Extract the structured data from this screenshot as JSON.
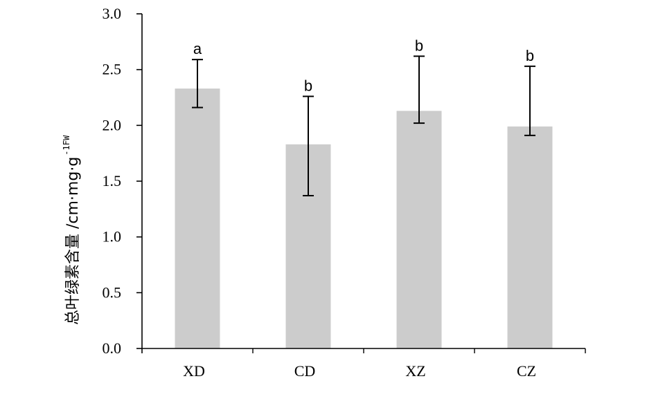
{
  "chart_data": {
    "type": "bar",
    "categories": [
      "XD",
      "CD",
      "XZ",
      "CZ"
    ],
    "values": [
      2.33,
      1.83,
      2.13,
      1.99
    ],
    "error_upper": [
      2.59,
      2.26,
      2.62,
      2.53
    ],
    "error_lower": [
      2.16,
      1.37,
      2.02,
      1.91
    ],
    "significance": [
      "a",
      "b",
      "b",
      "b"
    ],
    "ylabel": "总叶绿素含量 /cm·mg·g",
    "ylabel_sup": "-1FW",
    "ylim": [
      0,
      3.0
    ],
    "yticks": [
      "0.0",
      "0.5",
      "1.0",
      "1.5",
      "2.0",
      "2.5",
      "3.0"
    ],
    "bar_color": "#cccccc",
    "grid": false,
    "legend": "none"
  }
}
